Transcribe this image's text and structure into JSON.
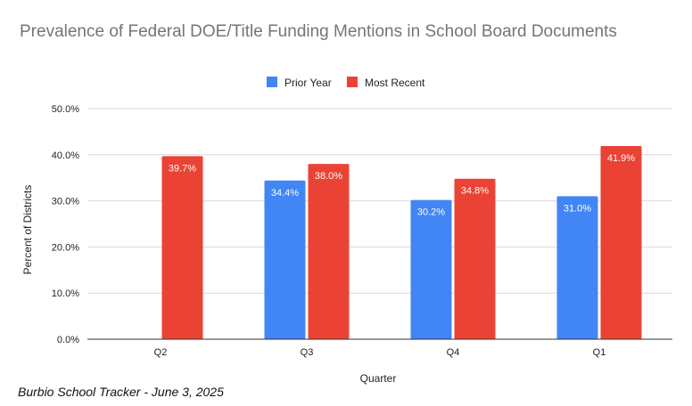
{
  "chart_data": {
    "type": "bar",
    "title": "Prevalence of Federal DOE/Title Funding Mentions in School Board Documents",
    "xlabel": "Quarter",
    "ylabel": "Percent of Districts",
    "categories": [
      "Q2",
      "Q3",
      "Q4",
      "Q1"
    ],
    "series": [
      {
        "name": "Prior Year",
        "color": "#4285f4",
        "values": [
          null,
          34.4,
          30.2,
          31.0
        ],
        "labels": [
          "",
          "34.4%",
          "30.2%",
          "31.0%"
        ]
      },
      {
        "name": "Most Recent",
        "color": "#ea4335",
        "values": [
          39.7,
          38.0,
          34.8,
          41.9
        ],
        "labels": [
          "39.7%",
          "38.0%",
          "34.8%",
          "41.9%"
        ]
      }
    ],
    "ylim": [
      0,
      50
    ],
    "yticks": [
      "0.0%",
      "10.0%",
      "20.0%",
      "30.0%",
      "40.0%",
      "50.0%"
    ],
    "grid": true,
    "legend_position": "top-center"
  },
  "source_note": "Burbio School Tracker - June 3, 2025"
}
